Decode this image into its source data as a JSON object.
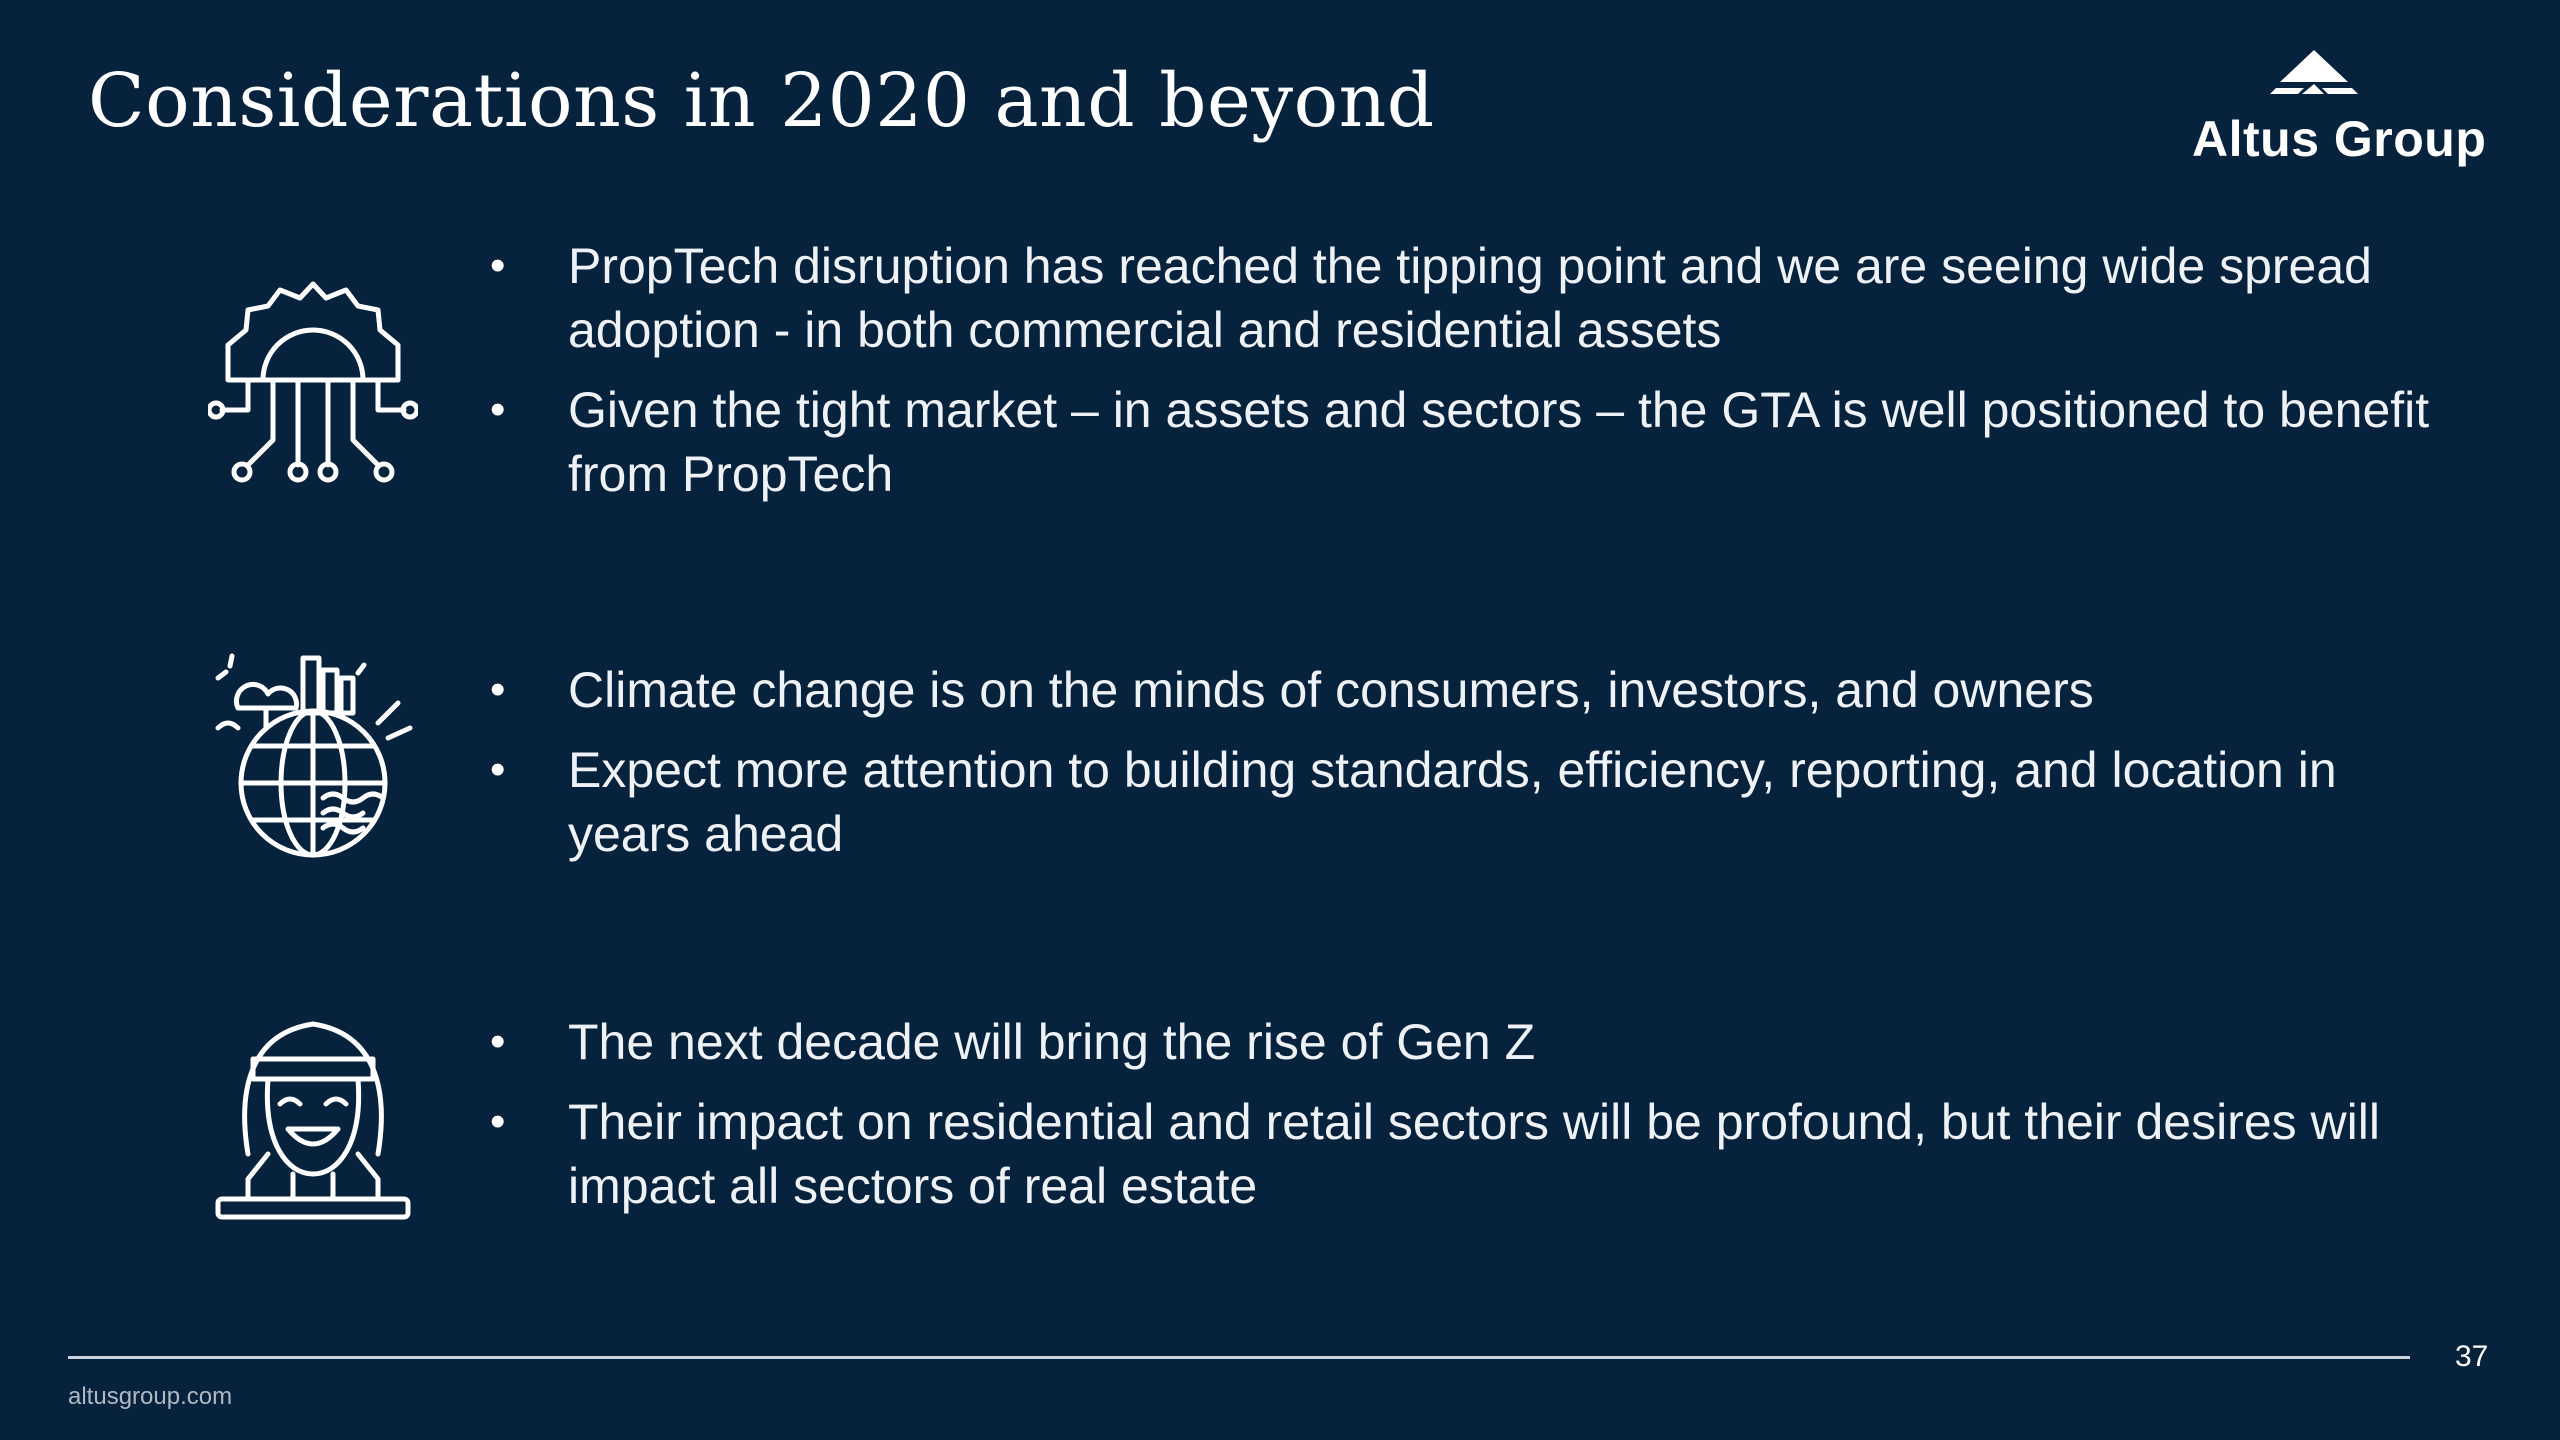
{
  "title": "Considerations in 2020 and beyond",
  "logo": {
    "text": "Altus Group"
  },
  "sections": [
    {
      "icon": "circuit-gear-icon",
      "bullets": [
        "PropTech disruption has reached the tipping point and we are seeing wide spread adoption - in both commercial and residential assets",
        "Given the tight market – in assets and sectors – the GTA is well positioned to benefit from PropTech"
      ]
    },
    {
      "icon": "globe-city-icon",
      "bullets": [
        "Climate change is on the minds of consumers, investors, and owners",
        "Expect more attention to building standards, efficiency, reporting, and location in years ahead"
      ]
    },
    {
      "icon": "person-headband-icon",
      "bullets": [
        "The next decade will bring the rise of Gen Z",
        "Their impact on residential and retail sectors will be profound, but their desires will impact all sectors of real estate"
      ]
    }
  ],
  "footer": {
    "page_number": "37",
    "website": "altusgroup.com"
  }
}
